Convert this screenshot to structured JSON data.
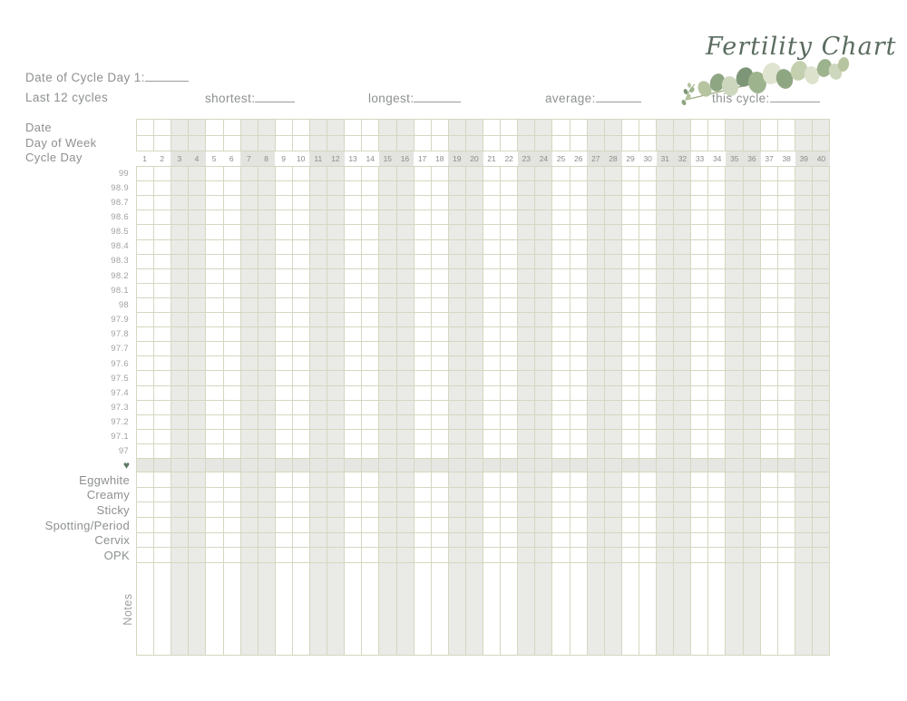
{
  "title": "Fertility Chart",
  "header": {
    "date_of_cycle_label": "Date of Cycle Day 1:",
    "last_cycles_label": "Last 12 cycles",
    "shortest_label": "shortest:",
    "longest_label": "longest:",
    "average_label": "average:",
    "this_cycle_label": "this cycle:"
  },
  "grid": {
    "row_headers": [
      "Date",
      "Day of Week",
      "Cycle Day"
    ],
    "cycle_days": [
      1,
      2,
      3,
      4,
      5,
      6,
      7,
      8,
      9,
      10,
      11,
      12,
      13,
      14,
      15,
      16,
      17,
      18,
      19,
      20,
      21,
      22,
      23,
      24,
      25,
      26,
      27,
      28,
      29,
      30,
      31,
      32,
      33,
      34,
      35,
      36,
      37,
      38,
      39,
      40
    ],
    "temperature_labels": [
      "99",
      "98.9",
      "98.7",
      "98.6",
      "98.5",
      "98.4",
      "98.3",
      "98.2",
      "98.1",
      "98",
      "97.9",
      "97.8",
      "97.7",
      "97.6",
      "97.5",
      "97.4",
      "97.3",
      "97.2",
      "97.1",
      "97"
    ],
    "heart_icon": "♥",
    "symptom_rows": [
      "Eggwhite",
      "Creamy",
      "Sticky",
      "Spotting/Period",
      "Cervix",
      "OPK"
    ],
    "notes_label": "Notes"
  },
  "colors": {
    "title_green": "#5a6c5f",
    "accent_heart_green": "#5d7a62",
    "grid_line_olive": "#d6d6c0",
    "shaded_cell_gray": "#eaeae7",
    "heart_row_gray": "#e6e6e3",
    "text_gray": "#8d918f",
    "leaf_sage": "#8fa683",
    "leaf_light": "#dfe4d0"
  }
}
